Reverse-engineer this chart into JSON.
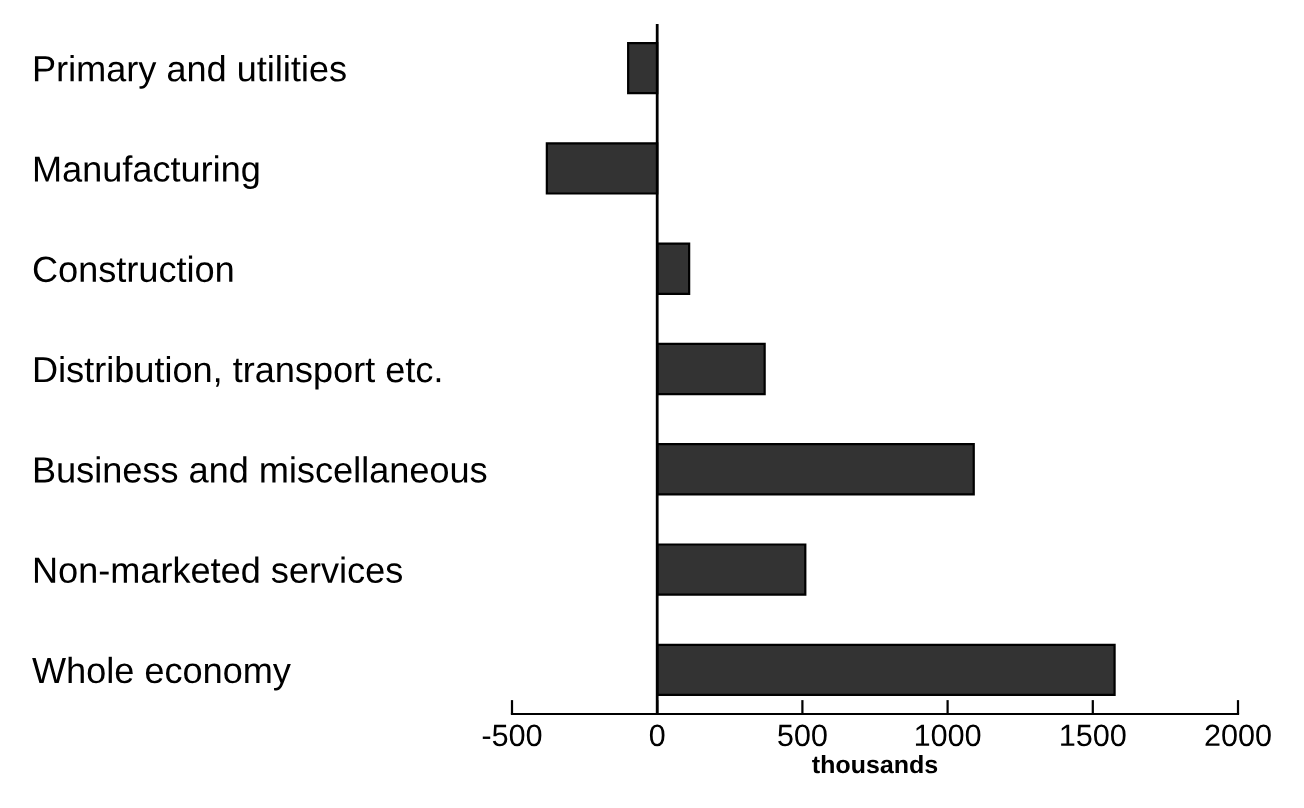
{
  "chart_data": {
    "type": "bar",
    "orientation": "horizontal",
    "xlabel": "thousands",
    "categories": [
      "Primary and utilities",
      "Manufacturing",
      "Construction",
      "Distribution, transport etc.",
      "Business and miscellaneous",
      "Non-marketed services",
      "Whole economy"
    ],
    "values": [
      -100,
      -380,
      110,
      370,
      1090,
      510,
      1575
    ],
    "color": "#333333",
    "xlim": [
      -500,
      2000
    ],
    "xticks": [
      -500,
      0,
      500,
      1000,
      1500,
      2000
    ],
    "ref_lines": [
      {
        "axis": "x",
        "value": 0,
        "color": "#000000"
      }
    ],
    "grid": false,
    "legend": false
  }
}
